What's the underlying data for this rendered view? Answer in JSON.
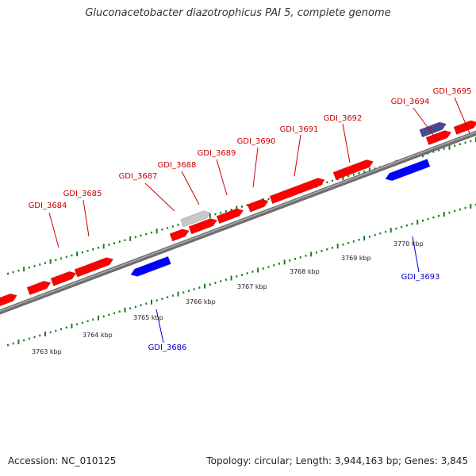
{
  "title": "Gluconacetobacter diazotrophicus PAI 5, complete genome",
  "accession_text": "Accession: NC_010125",
  "topology_text": "Topology: circular; Length: 3,944,163 bp; Genes: 3,845",
  "colors": {
    "forward_gene": "#ff0000",
    "reverse_gene": "#0000ff",
    "grey_feature": "#c8c8c8",
    "purple_feature": "#4a4890",
    "backbone": "#808080",
    "ticks": "#1a7a1a",
    "forward_label": "#cc0000",
    "reverse_label": "#0000cc"
  },
  "ticks": [
    {
      "label": "3763 kbp"
    },
    {
      "label": "3764 kbp"
    },
    {
      "label": "3765 kbp"
    },
    {
      "label": "3766 kbp"
    },
    {
      "label": "3767 kbp"
    },
    {
      "label": "3768 kbp"
    },
    {
      "label": "3769 kbp"
    },
    {
      "label": "3770 kbp"
    }
  ],
  "genes": [
    {
      "label": "GDI_3684",
      "strand": "forward"
    },
    {
      "label": "GDI_3685",
      "strand": "forward"
    },
    {
      "label": "GDI_3686",
      "strand": "reverse"
    },
    {
      "label": "GDI_3687",
      "strand": "forward"
    },
    {
      "label": "GDI_3688",
      "strand": "forward"
    },
    {
      "label": "GDI_3689",
      "strand": "forward"
    },
    {
      "label": "GDI_3690",
      "strand": "forward"
    },
    {
      "label": "GDI_3691",
      "strand": "forward"
    },
    {
      "label": "GDI_3692",
      "strand": "forward"
    },
    {
      "label": "GDI_3693",
      "strand": "reverse"
    },
    {
      "label": "GDI_3694",
      "strand": "forward"
    },
    {
      "label": "GDI_3695",
      "strand": "forward"
    }
  ]
}
